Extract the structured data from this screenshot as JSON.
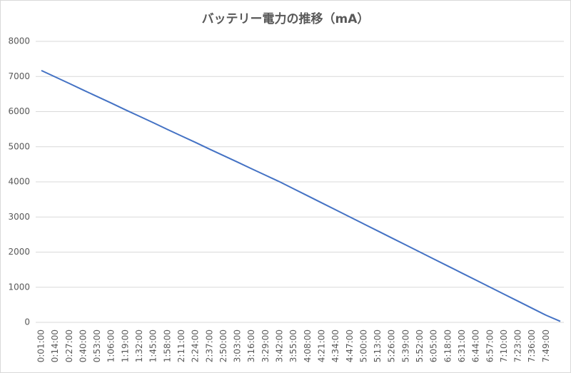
{
  "chart_data": {
    "type": "line",
    "title": "バッテリー電力の推移（mA）",
    "categories": [
      "0:01:00",
      "0:14:00",
      "0:27:00",
      "0:40:00",
      "0:53:00",
      "1:06:00",
      "1:19:00",
      "1:32:00",
      "1:45:00",
      "1:58:00",
      "2:11:00",
      "2:24:00",
      "2:37:00",
      "2:50:00",
      "3:03:00",
      "3:16:00",
      "3:29:00",
      "3:42:00",
      "3:55:00",
      "4:08:00",
      "4:21:00",
      "4:34:00",
      "4:47:00",
      "5:00:00",
      "5:13:00",
      "5:26:00",
      "5:39:00",
      "5:52:00",
      "6:05:00",
      "6:18:00",
      "6:31:00",
      "6:44:00",
      "6:57:00",
      "7:10:00",
      "7:23:00",
      "7:36:00",
      "7:49:00",
      null
    ],
    "series": [
      {
        "name": "バッテリー電力",
        "color": "#4472c4",
        "values": [
          7170,
          6985,
          6800,
          6610,
          6425,
          6240,
          6050,
          5865,
          5680,
          5490,
          5305,
          5120,
          4930,
          4745,
          4560,
          4370,
          4185,
          4000,
          3800,
          3600,
          3400,
          3200,
          3000,
          2800,
          2600,
          2400,
          2200,
          2000,
          1800,
          1600,
          1400,
          1200,
          1000,
          800,
          600,
          400,
          200,
          30
        ]
      }
    ],
    "ylim": [
      0,
      8000
    ],
    "yticks": [
      0,
      1000,
      2000,
      3000,
      4000,
      5000,
      6000,
      7000,
      8000
    ],
    "grid": true
  }
}
